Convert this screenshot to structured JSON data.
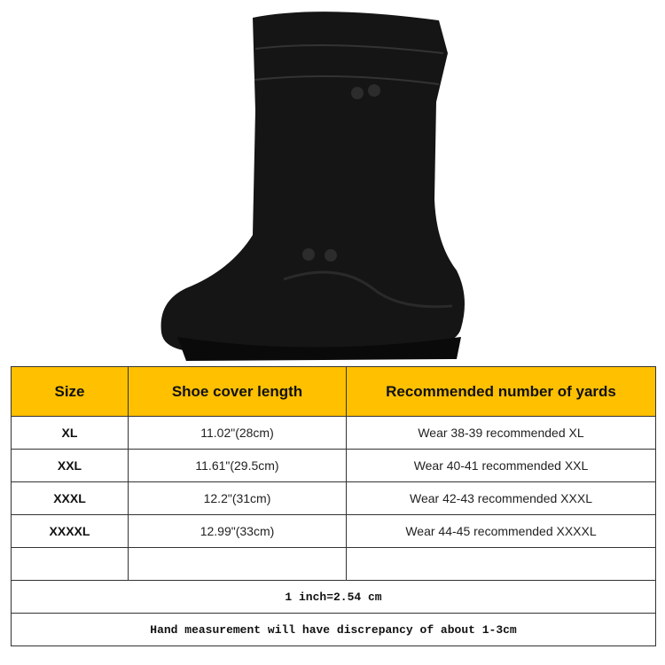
{
  "product_image": {
    "alt": "black shoe cover boot",
    "icon": "boot-image"
  },
  "table": {
    "headers": [
      "Size",
      "Shoe cover length",
      "Recommended number of yards"
    ],
    "header_color": "#FFC000",
    "rows": [
      [
        "XL",
        "11.02\"(28cm)",
        "Wear 38-39 recommended XL"
      ],
      [
        "XXL",
        "11.61\"(29.5cm)",
        "Wear 40-41 recommended XXL"
      ],
      [
        "XXXL",
        "12.2\"(31cm)",
        "Wear 42-43 recommended XXXL"
      ],
      [
        "XXXXL",
        "12.99\"(33cm)",
        "Wear 44-45 recommended XXXXL"
      ],
      [
        "",
        "",
        ""
      ]
    ],
    "notes": [
      "1 inch=2.54 cm",
      "Hand measurement will have discrepancy of about 1-3cm"
    ]
  }
}
